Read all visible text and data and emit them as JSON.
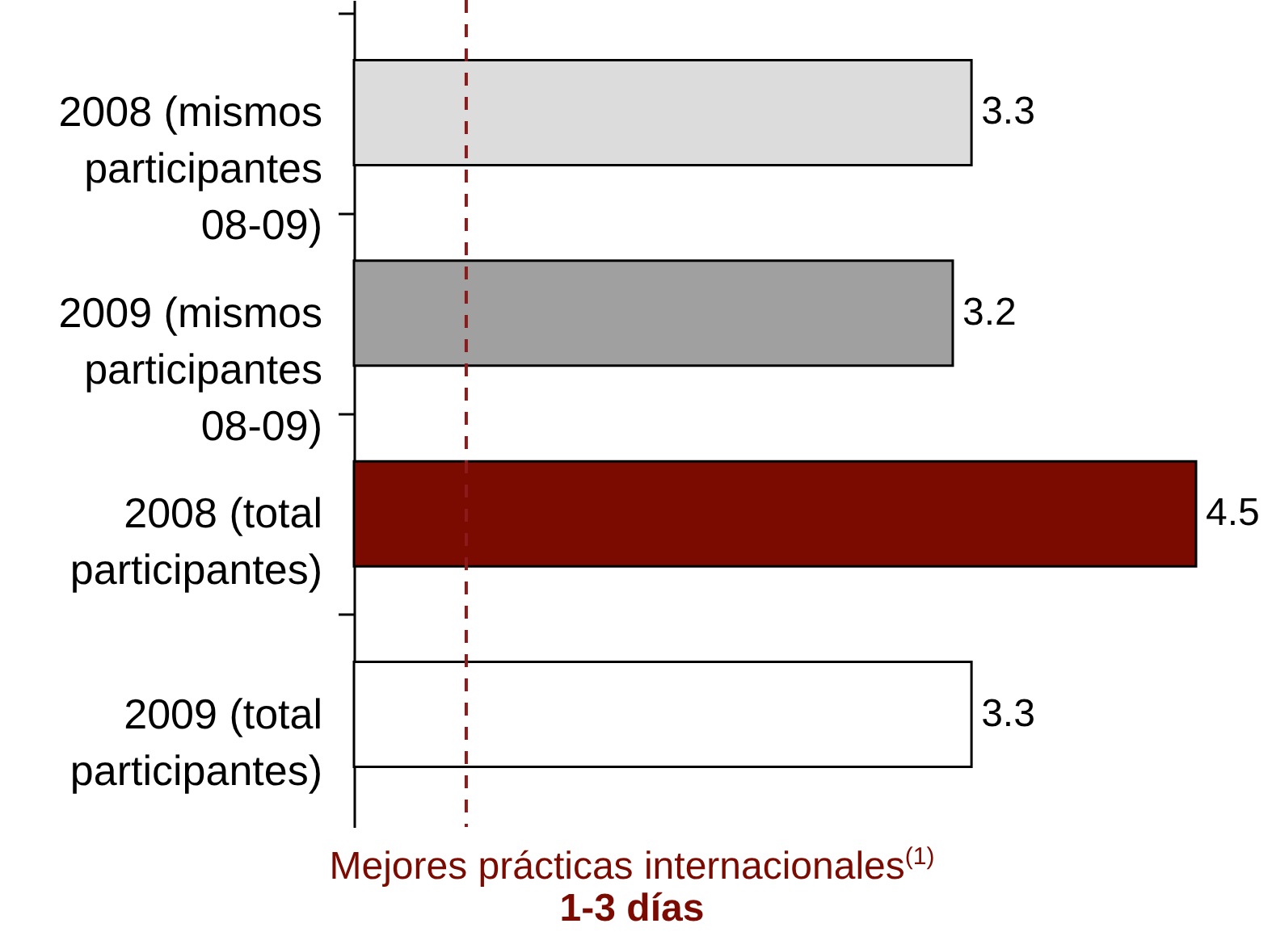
{
  "chart_data": {
    "type": "bar",
    "orientation": "horizontal",
    "categories": [
      "2008 (mismos participantes 08-09)",
      "2009 (mismos participantes 08-09)",
      "2008 (total participantes)",
      "2009 (total participantes)"
    ],
    "values": [
      3.3,
      3.2,
      4.5,
      3.3
    ],
    "colors": [
      "#dcdcdc",
      "#a0a0a0",
      "#7b0a00",
      "#ffffff"
    ],
    "xlim": [
      0,
      4.5
    ],
    "tick_labels": "y",
    "data_labels": true,
    "ref_lines": [
      {
        "axis": "x",
        "value": 0.6,
        "label": "Mejores prácticas internacionales$^{(1)}$",
        "color": "#8b1a1a",
        "line_style": "dashed"
      }
    ],
    "annotations": [
      "1-3 días"
    ]
  }
}
